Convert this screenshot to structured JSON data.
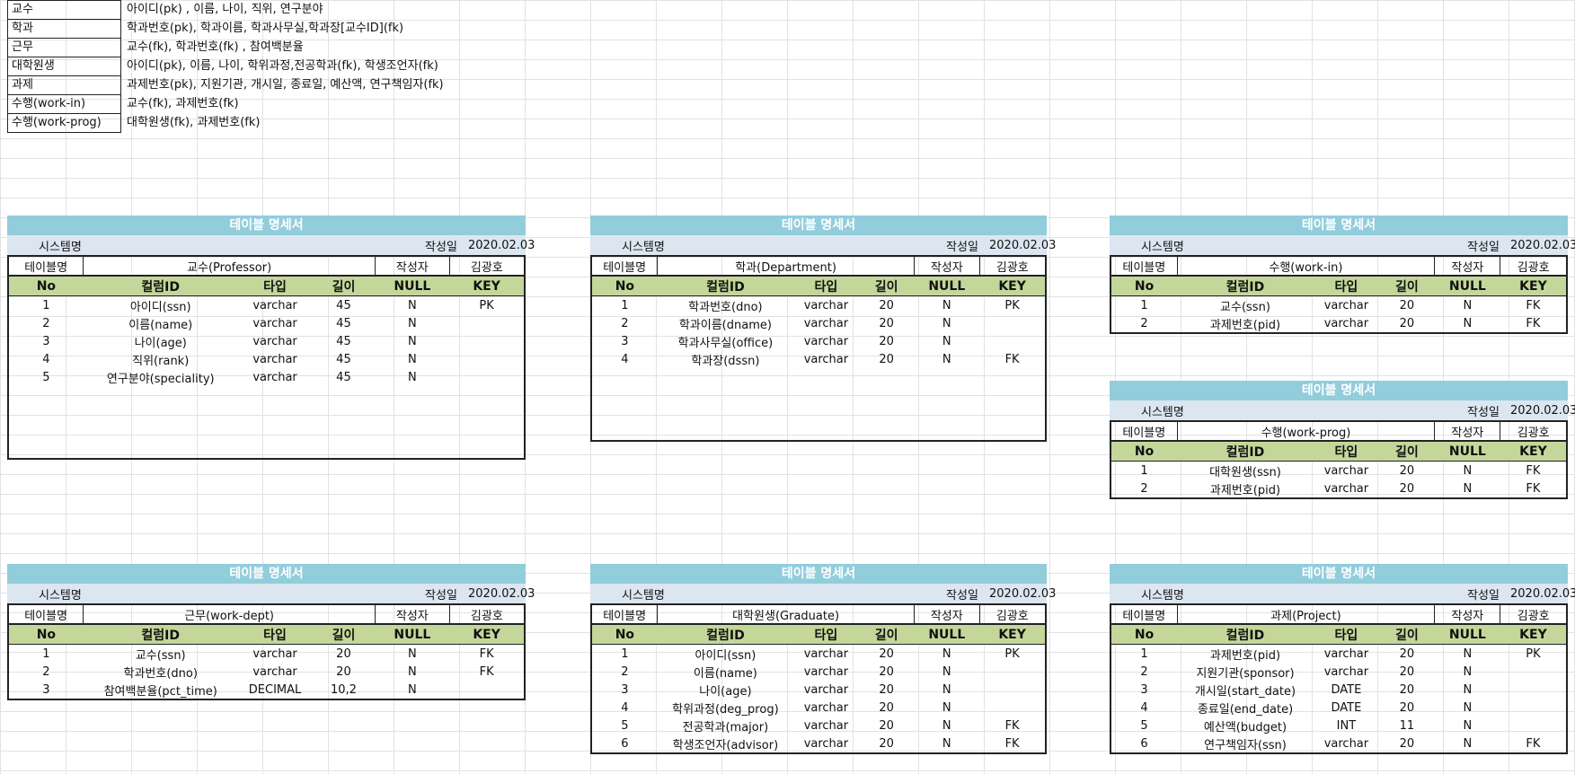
{
  "summary": [
    {
      "name": "교수",
      "desc": "아이디(pk) , 이름, 나이, 직위, 연구분야"
    },
    {
      "name": "학과",
      "desc": "학과번호(pk), 학과이름, 학과사무실,학과장[교수ID](fk)"
    },
    {
      "name": "근무",
      "desc": "교수(fk), 학과번호(fk) , 참여백분율"
    },
    {
      "name": "대학원생",
      "desc": "아이디(pk), 이름, 나이, 학위과정,전공학과(fk), 학생조언자(fk)"
    },
    {
      "name": "과제",
      "desc": "과제번호(pk), 지원기관, 개시일, 종료일, 예산액, 연구책임자(fk)"
    },
    {
      "name": "수행(work-in)",
      "desc": "교수(fk), 과제번호(fk)"
    },
    {
      "name": "수행(work-prog)",
      "desc": "대학원생(fk), 과제번호(fk)"
    }
  ],
  "labels": {
    "banner": "테이블 명세서",
    "system": "시스템명",
    "written_date": "작성일",
    "date": "2020.02.03",
    "table_name": "테이블명",
    "author_label": "작성자",
    "author": "김광호",
    "headers": [
      "No",
      "컬럼ID",
      "타입",
      "길이",
      "NULL",
      "KEY"
    ]
  },
  "tables": [
    {
      "title": "교수(Professor)",
      "rows": [
        [
          "1",
          "아이디(ssn)",
          "varchar",
          "45",
          "N",
          "PK"
        ],
        [
          "2",
          "이름(name)",
          "varchar",
          "45",
          "N",
          ""
        ],
        [
          "3",
          "나이(age)",
          "varchar",
          "45",
          "N",
          ""
        ],
        [
          "4",
          "직위(rank)",
          "varchar",
          "45",
          "N",
          ""
        ],
        [
          "5",
          "연구분야(speciality)",
          "varchar",
          "45",
          "N",
          ""
        ]
      ]
    },
    {
      "title": "학과(Department)",
      "rows": [
        [
          "1",
          "학과번호(dno)",
          "varchar",
          "20",
          "N",
          "PK"
        ],
        [
          "2",
          "학과이름(dname)",
          "varchar",
          "20",
          "N",
          ""
        ],
        [
          "3",
          "학과사무실(office)",
          "varchar",
          "20",
          "N",
          ""
        ],
        [
          "4",
          "학과장(dssn)",
          "varchar",
          "20",
          "N",
          "FK"
        ]
      ]
    },
    {
      "title": "수행(work-in)",
      "rows": [
        [
          "1",
          "교수(ssn)",
          "varchar",
          "20",
          "N",
          "FK"
        ],
        [
          "2",
          "과제번호(pid)",
          "varchar",
          "20",
          "N",
          "FK"
        ]
      ]
    },
    {
      "title": "수행(work-prog)",
      "rows": [
        [
          "1",
          "대학원생(ssn)",
          "varchar",
          "20",
          "N",
          "FK"
        ],
        [
          "2",
          "과제번호(pid)",
          "varchar",
          "20",
          "N",
          "FK"
        ]
      ]
    },
    {
      "title": "근무(work-dept)",
      "rows": [
        [
          "1",
          "교수(ssn)",
          "varchar",
          "20",
          "N",
          "FK"
        ],
        [
          "2",
          "학과번호(dno)",
          "varchar",
          "20",
          "N",
          "FK"
        ],
        [
          "3",
          "참여백분율(pct_time)",
          "DECIMAL",
          "10,2",
          "N",
          ""
        ]
      ]
    },
    {
      "title": "대학원생(Graduate)",
      "rows": [
        [
          "1",
          "아이디(ssn)",
          "varchar",
          "20",
          "N",
          "PK"
        ],
        [
          "2",
          "이름(name)",
          "varchar",
          "20",
          "N",
          ""
        ],
        [
          "3",
          "나이(age)",
          "varchar",
          "20",
          "N",
          ""
        ],
        [
          "4",
          "학위과정(deg_prog)",
          "varchar",
          "20",
          "N",
          ""
        ],
        [
          "5",
          "전공학과(major)",
          "varchar",
          "20",
          "N",
          "FK"
        ],
        [
          "6",
          "학생조언자(advisor)",
          "varchar",
          "20",
          "N",
          "FK"
        ]
      ]
    },
    {
      "title": "과제(Project)",
      "rows": [
        [
          "1",
          "과제번호(pid)",
          "varchar",
          "20",
          "N",
          "PK"
        ],
        [
          "2",
          "지원기관(sponsor)",
          "varchar",
          "20",
          "N",
          ""
        ],
        [
          "3",
          "개시일(start_date)",
          "DATE",
          "20",
          "N",
          ""
        ],
        [
          "4",
          "종료일(end_date)",
          "DATE",
          "20",
          "N",
          ""
        ],
        [
          "5",
          "예산액(budget)",
          "INT",
          "11",
          "N",
          ""
        ],
        [
          "6",
          "연구책임자(ssn)",
          "varchar",
          "20",
          "N",
          "FK"
        ]
      ]
    }
  ]
}
